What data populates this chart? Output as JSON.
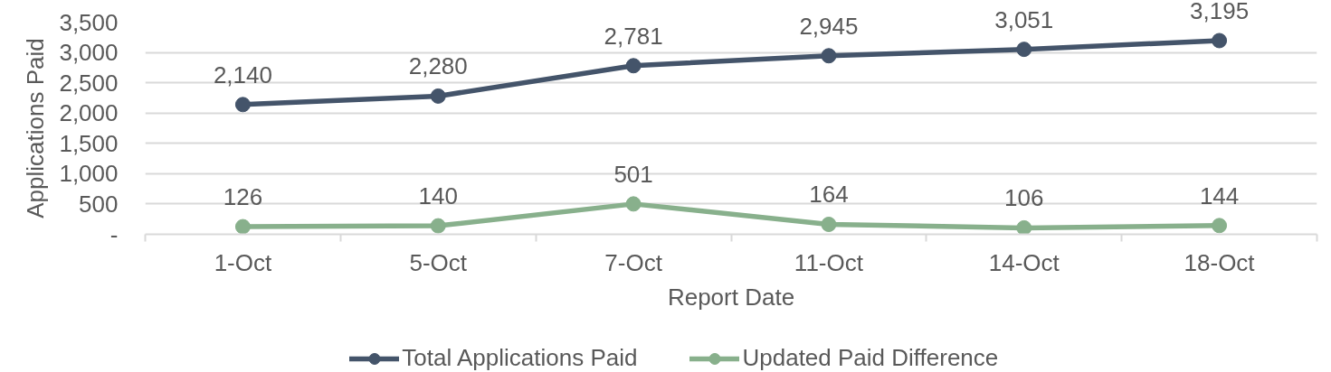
{
  "chart_data": {
    "type": "line",
    "xlabel": "Report Date",
    "ylabel": "Applications Paid",
    "categories": [
      "1-Oct",
      "5-Oct",
      "7-Oct",
      "11-Oct",
      "14-Oct",
      "18-Oct"
    ],
    "series": [
      {
        "name": "Total Applications Paid",
        "color": "#44546a",
        "values": [
          2140,
          2280,
          2781,
          2945,
          3051,
          3195
        ],
        "value_labels": [
          "2,140",
          "2,280",
          "2,781",
          "2,945",
          "3,051",
          "3,195"
        ]
      },
      {
        "name": "Updated Paid Difference",
        "color": "#88b08c",
        "values": [
          126,
          140,
          501,
          164,
          106,
          144
        ],
        "value_labels": [
          "126",
          "140",
          "501",
          "164",
          "106",
          "144"
        ]
      }
    ],
    "ylim": [
      0,
      3500
    ],
    "yticks": [
      {
        "value": 0,
        "label": "-"
      },
      500,
      {
        "value": 1000,
        "label": "1,000"
      },
      {
        "value": 1500,
        "label": "1,500"
      },
      {
        "value": 2000,
        "label": "2,000"
      },
      {
        "value": 2500,
        "label": "2,500"
      },
      {
        "value": 3000,
        "label": "3,000"
      },
      {
        "value": 3500,
        "label": "3,500"
      }
    ],
    "grid": "y",
    "legend": "bottom",
    "marker": "circle",
    "line_style": "solid"
  }
}
